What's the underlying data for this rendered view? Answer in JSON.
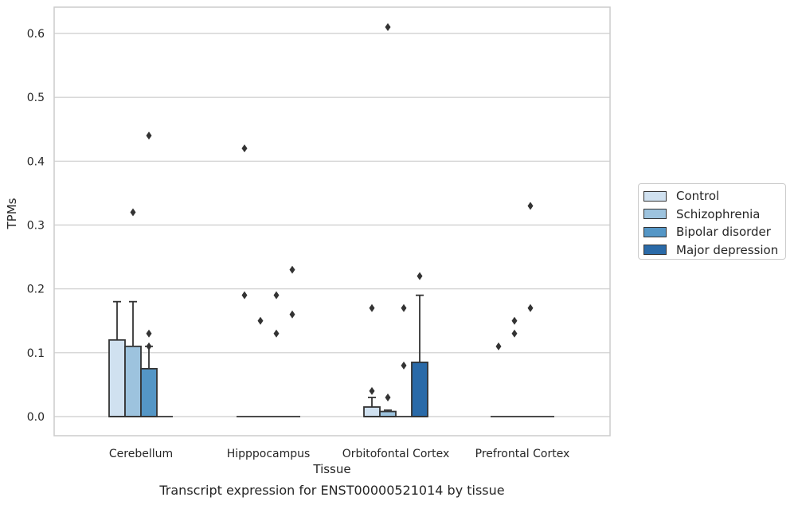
{
  "chart_data": {
    "type": "box",
    "caption": "Transcript expression for ENST00000521014 by tissue",
    "xlabel": "Tissue",
    "ylabel": "TPMs",
    "categories": [
      "Cerebellum",
      "Hipppocampus",
      "Orbitofontal Cortex",
      "Prefrontal Cortex"
    ],
    "ylim": [
      -0.03,
      0.64
    ],
    "yticks": [
      "0.0",
      "0.1",
      "0.2",
      "0.3",
      "0.4",
      "0.5",
      "0.6"
    ],
    "grid": true,
    "legend_position": "right",
    "series": [
      {
        "name": "Control",
        "color": "#d0e1f0",
        "boxes": [
          {
            "q1": 0,
            "q3": 0.12,
            "median": 0,
            "whisker_high": 0.18,
            "outliers": []
          },
          {
            "q1": 0,
            "q3": 0,
            "median": 0,
            "whisker_high": 0,
            "outliers": [
              0.42,
              0.19
            ]
          },
          {
            "q1": 0,
            "q3": 0.015,
            "median": 0,
            "whisker_high": 0.03,
            "outliers": [
              0.04,
              0.17
            ]
          },
          {
            "q1": 0,
            "q3": 0,
            "median": 0,
            "whisker_high": 0,
            "outliers": [
              0.11
            ]
          }
        ]
      },
      {
        "name": "Schizophrenia",
        "color": "#9dc3de",
        "boxes": [
          {
            "q1": 0,
            "q3": 0.11,
            "median": 0,
            "whisker_high": 0.18,
            "outliers": [
              0.32
            ]
          },
          {
            "q1": 0,
            "q3": 0,
            "median": 0,
            "whisker_high": 0,
            "outliers": [
              0.15
            ]
          },
          {
            "q1": 0,
            "q3": 0.008,
            "median": 0,
            "whisker_high": 0.01,
            "outliers": [
              0.03,
              0.61
            ]
          },
          {
            "q1": 0,
            "q3": 0,
            "median": 0,
            "whisker_high": 0,
            "outliers": [
              0.15,
              0.13
            ]
          }
        ]
      },
      {
        "name": "Bipolar disorder",
        "color": "#5496c6",
        "boxes": [
          {
            "q1": 0,
            "q3": 0.075,
            "median": 0,
            "whisker_high": 0.11,
            "outliers": [
              0.13,
              0.11,
              0.44
            ]
          },
          {
            "q1": 0,
            "q3": 0,
            "median": 0,
            "whisker_high": 0,
            "outliers": [
              0.19,
              0.13
            ]
          },
          {
            "q1": 0,
            "q3": 0,
            "median": 0,
            "whisker_high": 0,
            "outliers": [
              0.17,
              0.08
            ]
          },
          {
            "q1": 0,
            "q3": 0,
            "median": 0,
            "whisker_high": 0,
            "outliers": [
              0.17,
              0.33
            ]
          }
        ]
      },
      {
        "name": "Major depression",
        "color": "#2a6aa8",
        "boxes": [
          {
            "q1": 0,
            "q3": 0,
            "median": 0,
            "whisker_high": 0,
            "outliers": []
          },
          {
            "q1": 0,
            "q3": 0,
            "median": 0,
            "whisker_high": 0,
            "outliers": [
              0.23,
              0.16
            ]
          },
          {
            "q1": 0,
            "q3": 0.085,
            "median": 0,
            "whisker_high": 0.19,
            "outliers": [
              0.22
            ]
          },
          {
            "q1": 0,
            "q3": 0,
            "median": 0,
            "whisker_high": 0,
            "outliers": []
          }
        ]
      }
    ]
  }
}
